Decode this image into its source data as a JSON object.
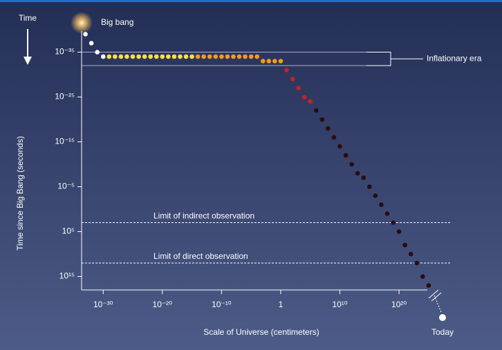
{
  "chart_data": {
    "type": "scatter",
    "time_label": "Time",
    "big_bang_label": "Big bang",
    "today_label": "Today",
    "x_label": "Scale of Universe (centimeters)",
    "y_label": "Time since Big Bang (seconds)",
    "xscale": "log",
    "yscale": "log",
    "y_inverted": true,
    "xlim": [
      1e-34,
      1e+27
    ],
    "ylim": [
      1e-40,
      1e+18
    ],
    "xticks": [
      {
        "value": 1e-30,
        "label": "10⁻³⁰"
      },
      {
        "value": 1e-20,
        "label": "10⁻²⁰"
      },
      {
        "value": 1e-10,
        "label": "10⁻¹⁰"
      },
      1,
      {
        "value": 10000000000.0,
        "label": "10¹⁰"
      },
      {
        "value": 1e+20,
        "label": "10²⁰"
      }
    ],
    "yticks": [
      {
        "value": 1e-35,
        "label": "10⁻³⁵"
      },
      {
        "value": 1e-25,
        "label": "10⁻²⁵"
      },
      {
        "value": 1e-15,
        "label": "10⁻¹⁵"
      },
      {
        "value": 1e-05,
        "label": "10⁻⁵"
      },
      {
        "value": 100000.0,
        "label": "10⁵"
      },
      {
        "value": 1000000000000000.0,
        "label": "10¹⁵"
      }
    ],
    "series": [
      {
        "color": "#ffffff",
        "x": [
          1e-33,
          1e-32,
          1e-31,
          1e-30
        ],
        "values": [
          1e-39,
          1e-37,
          1e-35,
          1e-34
        ]
      },
      {
        "color": "#ffe23a",
        "x": [
          1e-29,
          1e-28,
          1e-27,
          1e-26,
          1e-25,
          1e-24,
          1e-23,
          1e-22,
          1e-21,
          1e-20,
          1e-19,
          1e-18,
          1e-17,
          1e-16,
          1e-15
        ],
        "values": [
          1e-34,
          1e-34,
          1e-34,
          1e-34,
          1e-34,
          1e-34,
          1e-34,
          1e-34,
          1e-34,
          1e-34,
          1e-34,
          1e-34,
          1e-34,
          1e-34,
          1e-34
        ]
      },
      {
        "color": "#f59a1c",
        "x": [
          1e-14,
          1e-13,
          1e-12,
          1e-11,
          1e-10,
          1e-09,
          1e-08,
          1e-07,
          1e-06,
          1e-05,
          0.0001,
          0.001,
          0.01,
          0.1,
          1
        ],
        "values": [
          1e-34,
          1e-34,
          1e-34,
          1e-34,
          1e-34,
          1e-34,
          1e-34,
          1e-34,
          1e-34,
          1e-34,
          1e-34,
          1e-33,
          1e-33,
          1e-33,
          1e-33
        ]
      },
      {
        "color": "#c4231d",
        "x": [
          10.0,
          100.0,
          1000.0,
          10000.0,
          100000.0
        ],
        "values": [
          1e-31,
          1e-29,
          1e-27,
          1e-25,
          1e-24
        ]
      },
      {
        "color": "#2a0c10",
        "x": [
          1000000.0,
          10000000.0,
          100000000.0,
          1000000000.0,
          10000000000.0,
          100000000000.0,
          1000000000000.0,
          10000000000000.0,
          100000000000000.0,
          1000000000000000.0,
          1e+16,
          1e+17,
          1e+18,
          1e+19,
          1e+20,
          1e+21,
          1e+22,
          1e+23,
          1e+24,
          1e+25
        ],
        "values": [
          1e-22,
          1e-20,
          1e-18,
          1e-16,
          1e-14,
          1e-12,
          1e-10,
          1e-08,
          1e-07,
          1e-05,
          0.001,
          0.1,
          10.0,
          1000.0,
          100000.0,
          100000000.0,
          10000000000.0,
          1000000000000.0,
          1000000000000000.0,
          1e+17
        ]
      }
    ],
    "annotations": [
      {
        "text": "Inflationary era",
        "y": [
          1e-35,
          1e-32
        ]
      },
      {
        "text": "Limit of indirect observation",
        "y": 1000.0
      },
      {
        "text": "Limit of direct observation",
        "y": 1000000000000.0
      }
    ]
  }
}
